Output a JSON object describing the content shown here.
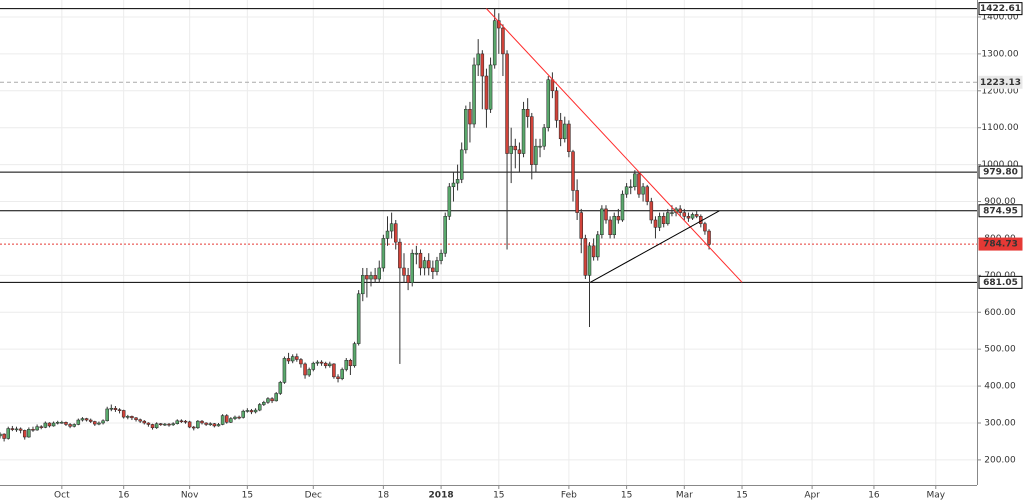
{
  "chart_data": {
    "type": "candlestick",
    "x": [
      -15,
      -14,
      -13,
      -12,
      -11,
      -10,
      -9,
      -8,
      -7,
      -6,
      -5,
      -4,
      -3,
      -2,
      -1,
      0,
      1,
      2,
      3,
      4,
      5,
      6,
      7,
      8,
      9,
      10,
      11,
      12,
      13,
      14,
      15,
      16,
      17,
      18,
      19,
      20,
      21,
      22,
      23,
      24,
      25,
      26,
      27,
      28,
      29,
      30,
      31,
      32,
      33,
      34,
      35,
      36,
      37,
      38,
      39,
      40,
      41,
      42,
      43,
      44,
      45,
      46,
      47,
      48,
      49,
      50,
      51,
      52,
      53,
      54,
      55,
      56,
      57,
      58,
      59,
      60,
      61,
      62,
      63,
      64,
      65,
      66,
      67,
      68,
      69,
      70,
      71,
      72,
      73,
      74,
      75,
      76,
      77,
      78,
      79,
      80,
      81,
      82,
      83,
      84,
      85,
      86,
      87,
      88,
      89,
      90,
      91,
      92,
      93,
      94,
      95,
      96,
      97,
      98,
      99,
      100,
      101,
      102,
      103,
      104,
      105,
      106,
      107,
      108,
      109,
      110,
      111,
      112,
      113,
      114,
      115,
      116,
      117,
      118,
      119,
      120,
      121,
      122,
      123,
      124,
      125,
      126,
      127,
      128,
      129,
      130,
      131,
      132,
      133,
      134,
      135,
      136,
      137,
      138,
      139,
      140,
      141,
      142,
      143,
      144,
      145,
      146,
      147,
      148,
      149,
      150,
      151,
      152,
      153,
      154,
      155,
      156,
      157
    ],
    "candles": [
      [
        265,
        275,
        258,
        270
      ],
      [
        270,
        272,
        250,
        258
      ],
      [
        258,
        290,
        255,
        285
      ],
      [
        285,
        292,
        278,
        282
      ],
      [
        282,
        290,
        276,
        284
      ],
      [
        284,
        288,
        272,
        280
      ],
      [
        280,
        282,
        255,
        262
      ],
      [
        262,
        288,
        260,
        283
      ],
      [
        283,
        290,
        276,
        281
      ],
      [
        281,
        296,
        279,
        290
      ],
      [
        290,
        294,
        283,
        288
      ],
      [
        288,
        304,
        286,
        300
      ],
      [
        300,
        302,
        288,
        292
      ],
      [
        292,
        304,
        290,
        300
      ],
      [
        300,
        306,
        296,
        302
      ],
      [
        302,
        306,
        298,
        302
      ],
      [
        302,
        304,
        292,
        296
      ],
      [
        296,
        300,
        286,
        291
      ],
      [
        291,
        299,
        288,
        296
      ],
      [
        296,
        312,
        294,
        308
      ],
      [
        308,
        316,
        304,
        312
      ],
      [
        312,
        314,
        304,
        308
      ],
      [
        308,
        312,
        300,
        304
      ],
      [
        304,
        306,
        292,
        297
      ],
      [
        297,
        304,
        294,
        300
      ],
      [
        300,
        310,
        296,
        306
      ],
      [
        306,
        344,
        304,
        338
      ],
      [
        338,
        350,
        332,
        340
      ],
      [
        340,
        346,
        330,
        336
      ],
      [
        336,
        340,
        326,
        334
      ],
      [
        334,
        336,
        312,
        316
      ],
      [
        316,
        322,
        310,
        318
      ],
      [
        318,
        320,
        308,
        314
      ],
      [
        314,
        316,
        304,
        309
      ],
      [
        309,
        312,
        300,
        305
      ],
      [
        305,
        308,
        296,
        300
      ],
      [
        300,
        302,
        290,
        296
      ],
      [
        296,
        298,
        282,
        287
      ],
      [
        287,
        302,
        284,
        298
      ],
      [
        298,
        300,
        292,
        296
      ],
      [
        296,
        300,
        292,
        297
      ],
      [
        297,
        300,
        290,
        295
      ],
      [
        295,
        302,
        292,
        298
      ],
      [
        298,
        310,
        296,
        306
      ],
      [
        306,
        310,
        300,
        305
      ],
      [
        305,
        308,
        298,
        303
      ],
      [
        303,
        306,
        286,
        289
      ],
      [
        289,
        292,
        280,
        287
      ],
      [
        287,
        308,
        284,
        305
      ],
      [
        305,
        308,
        296,
        300
      ],
      [
        300,
        302,
        292,
        296
      ],
      [
        296,
        302,
        292,
        298
      ],
      [
        298,
        300,
        288,
        292
      ],
      [
        292,
        300,
        290,
        296
      ],
      [
        296,
        324,
        294,
        320
      ],
      [
        320,
        324,
        298,
        302
      ],
      [
        302,
        316,
        300,
        312
      ],
      [
        312,
        320,
        308,
        316
      ],
      [
        316,
        320,
        310,
        315
      ],
      [
        315,
        336,
        312,
        332
      ],
      [
        332,
        340,
        328,
        334
      ],
      [
        334,
        338,
        324,
        330
      ],
      [
        330,
        340,
        326,
        335
      ],
      [
        335,
        354,
        332,
        350
      ],
      [
        350,
        360,
        346,
        356
      ],
      [
        356,
        370,
        352,
        366
      ],
      [
        366,
        370,
        354,
        360
      ],
      [
        360,
        384,
        358,
        380
      ],
      [
        380,
        414,
        376,
        410
      ],
      [
        410,
        480,
        406,
        475
      ],
      [
        475,
        490,
        460,
        468
      ],
      [
        468,
        486,
        462,
        480
      ],
      [
        480,
        488,
        466,
        472
      ],
      [
        472,
        476,
        450,
        460
      ],
      [
        460,
        464,
        420,
        430
      ],
      [
        430,
        450,
        425,
        445
      ],
      [
        445,
        466,
        440,
        462
      ],
      [
        462,
        470,
        455,
        465
      ],
      [
        465,
        470,
        455,
        462
      ],
      [
        462,
        466,
        448,
        455
      ],
      [
        455,
        466,
        450,
        460
      ],
      [
        460,
        462,
        420,
        425
      ],
      [
        425,
        432,
        410,
        420
      ],
      [
        420,
        450,
        416,
        445
      ],
      [
        445,
        476,
        440,
        470
      ],
      [
        470,
        474,
        430,
        455
      ],
      [
        455,
        520,
        450,
        515
      ],
      [
        515,
        660,
        510,
        650
      ],
      [
        650,
        720,
        630,
        700
      ],
      [
        700,
        720,
        640,
        690
      ],
      [
        690,
        710,
        670,
        700
      ],
      [
        700,
        720,
        680,
        690
      ],
      [
        690,
        740,
        680,
        720
      ],
      [
        720,
        810,
        710,
        800
      ],
      [
        800,
        860,
        780,
        820
      ],
      [
        820,
        870,
        800,
        840
      ],
      [
        840,
        850,
        770,
        790
      ],
      [
        790,
        800,
        460,
        720
      ],
      [
        720,
        760,
        680,
        700
      ],
      [
        700,
        720,
        660,
        680
      ],
      [
        680,
        770,
        670,
        760
      ],
      [
        760,
        780,
        730,
        760
      ],
      [
        760,
        770,
        700,
        720
      ],
      [
        720,
        750,
        700,
        740
      ],
      [
        740,
        760,
        700,
        720
      ],
      [
        720,
        740,
        690,
        710
      ],
      [
        710,
        750,
        700,
        740
      ],
      [
        740,
        770,
        730,
        760
      ],
      [
        760,
        870,
        750,
        860
      ],
      [
        860,
        950,
        850,
        940
      ],
      [
        940,
        980,
        900,
        950
      ],
      [
        950,
        1000,
        930,
        960
      ],
      [
        960,
        1060,
        950,
        1040
      ],
      [
        1040,
        1160,
        1030,
        1150
      ],
      [
        1150,
        1170,
        1060,
        1110
      ],
      [
        1110,
        1290,
        1100,
        1270
      ],
      [
        1270,
        1340,
        1240,
        1300
      ],
      [
        1300,
        1310,
        1150,
        1240
      ],
      [
        1240,
        1260,
        1100,
        1150
      ],
      [
        1150,
        1290,
        1140,
        1270
      ],
      [
        1270,
        1422,
        1260,
        1390
      ],
      [
        1390,
        1410,
        1300,
        1370
      ],
      [
        1370,
        1380,
        1240,
        1300
      ],
      [
        1300,
        1310,
        770,
        1030
      ],
      [
        1030,
        1100,
        950,
        1050
      ],
      [
        1050,
        1070,
        990,
        1040
      ],
      [
        1040,
        1060,
        980,
        1030
      ],
      [
        1030,
        1170,
        1020,
        1150
      ],
      [
        1150,
        1180,
        1100,
        1130
      ],
      [
        1130,
        1140,
        960,
        1000
      ],
      [
        1000,
        1070,
        980,
        1050
      ],
      [
        1050,
        1070,
        1020,
        1050
      ],
      [
        1050,
        1110,
        1040,
        1100
      ],
      [
        1100,
        1240,
        1090,
        1230
      ],
      [
        1230,
        1250,
        1180,
        1200
      ],
      [
        1200,
        1210,
        1100,
        1120
      ],
      [
        1120,
        1140,
        1050,
        1070
      ],
      [
        1070,
        1130,
        1060,
        1110
      ],
      [
        1110,
        1120,
        1020,
        1035
      ],
      [
        1035,
        1040,
        900,
        930
      ],
      [
        930,
        960,
        850,
        870
      ],
      [
        870,
        880,
        760,
        800
      ],
      [
        800,
        810,
        690,
        700
      ],
      [
        700,
        790,
        560,
        780
      ],
      [
        780,
        800,
        740,
        750
      ],
      [
        750,
        820,
        740,
        810
      ],
      [
        810,
        890,
        800,
        880
      ],
      [
        880,
        890,
        840,
        850
      ],
      [
        850,
        860,
        800,
        810
      ],
      [
        810,
        870,
        800,
        860
      ],
      [
        860,
        880,
        840,
        850
      ],
      [
        850,
        930,
        845,
        920
      ],
      [
        920,
        950,
        910,
        940
      ],
      [
        940,
        960,
        920,
        940
      ],
      [
        940,
        985,
        930,
        975
      ],
      [
        975,
        980,
        910,
        920
      ],
      [
        920,
        950,
        900,
        940
      ],
      [
        940,
        945,
        890,
        900
      ],
      [
        900,
        910,
        840,
        850
      ],
      [
        850,
        860,
        800,
        830
      ],
      [
        830,
        870,
        820,
        860
      ],
      [
        860,
        870,
        830,
        840
      ],
      [
        840,
        880,
        835,
        870
      ],
      [
        870,
        890,
        860,
        870
      ],
      [
        870,
        885,
        860,
        880
      ],
      [
        880,
        890,
        860,
        870
      ],
      [
        870,
        880,
        850,
        860
      ],
      [
        860,
        870,
        845,
        855
      ],
      [
        855,
        870,
        850,
        865
      ],
      [
        865,
        875,
        855,
        860
      ],
      [
        860,
        865,
        830,
        840
      ],
      [
        840,
        845,
        810,
        820
      ],
      [
        820,
        825,
        770,
        784
      ]
    ],
    "colors": {
      "up": "#5aa86c",
      "down": "#d0433a",
      "wick": "#333333"
    },
    "xlim": [
      -15,
      222
    ],
    "ylim": [
      132,
      1446
    ],
    "xticks": [
      {
        "value": 0,
        "label": "Oct"
      },
      {
        "value": 15,
        "label": "16"
      },
      {
        "value": 31,
        "label": "Nov"
      },
      {
        "value": 45,
        "label": "15"
      },
      {
        "value": 61,
        "label": "Dec"
      },
      {
        "value": 78,
        "label": "18"
      },
      {
        "value": 92,
        "label": "2018"
      },
      {
        "value": 106,
        "label": "15"
      },
      {
        "value": 123,
        "label": "Feb"
      },
      {
        "value": 137,
        "label": "15"
      },
      {
        "value": 151,
        "label": "Mar"
      },
      {
        "value": 165,
        "label": "15"
      },
      {
        "value": 182,
        "label": "Apr"
      },
      {
        "value": 197,
        "label": "16"
      },
      {
        "value": 212,
        "label": "May"
      }
    ],
    "yticks": [
      {
        "value": 200,
        "label": "200.00"
      },
      {
        "value": 300,
        "label": "300.00"
      },
      {
        "value": 400,
        "label": "400.00"
      },
      {
        "value": 500,
        "label": "500.00"
      },
      {
        "value": 600,
        "label": "600.00"
      },
      {
        "value": 700,
        "label": "700.00"
      },
      {
        "value": 800,
        "label": "800.00"
      },
      {
        "value": 900,
        "label": "900.00"
      },
      {
        "value": 1000,
        "label": "1000.00"
      },
      {
        "value": 1100,
        "label": "1100.00"
      },
      {
        "value": 1200,
        "label": "1200.00"
      },
      {
        "value": 1300,
        "label": "1300.00"
      },
      {
        "value": 1400,
        "label": "1400.00"
      }
    ],
    "levels": [
      {
        "value": 1422.61,
        "color": "#000000",
        "style": "solid"
      },
      {
        "value": 1223.13,
        "color": "#aaaaaa",
        "style": "dashed"
      },
      {
        "value": 979.8,
        "label": "979.80",
        "color": "#000000",
        "style": "solid"
      },
      {
        "value": 874.95,
        "color": "#000000",
        "style": "solid"
      },
      {
        "value": 784.73,
        "color": "#e53935",
        "style": "dotted"
      },
      {
        "value": 681.05,
        "color": "#000000",
        "style": "solid"
      }
    ],
    "trendlines": [
      {
        "color": "#ff2a2a",
        "points": [
          [
            103,
            1422.61
          ],
          [
            165,
            681.05
          ]
        ]
      },
      {
        "color": "#000000",
        "points": [
          [
            128.2,
            681.05
          ],
          [
            159.5,
            874.95
          ]
        ]
      }
    ],
    "grid": true
  }
}
